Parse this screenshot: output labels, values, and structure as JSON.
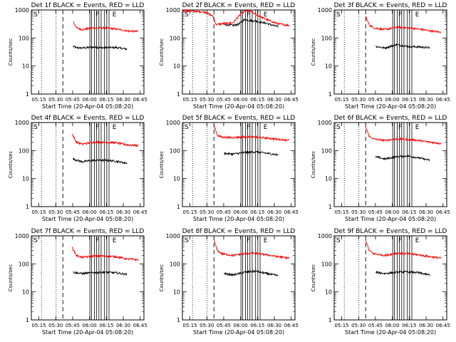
{
  "chart_data": [
    {
      "type": "line",
      "title": "Det 1f BLACK = Events, RED = LLD",
      "xlabel": "Start Time (20-Apr-04 05:08:20)",
      "ylabel": "Counts/sec",
      "yscale": "log",
      "ylim": [
        1,
        1000
      ],
      "x_start": "05:08",
      "xlim_minutes": [
        0,
        100
      ],
      "xtick_labels": [
        "05:15",
        "05:30",
        "05:45",
        "06:00",
        "06:15",
        "06:30",
        "06:45"
      ],
      "ytick_labels": [
        "1",
        "10",
        "100",
        "1000"
      ],
      "markers": [
        "S",
        "F",
        "E"
      ],
      "series": [
        {
          "name": "Events",
          "color": "#000000",
          "x_minutes": [
            37,
            40,
            45,
            55,
            65,
            75,
            85
          ],
          "values": [
            50,
            45,
            44,
            47,
            45,
            46,
            40
          ]
        },
        {
          "name": "LLD",
          "color": "#ff0000",
          "x_minutes": [
            37,
            40,
            45,
            55,
            65,
            75,
            85,
            95
          ],
          "values": [
            400,
            230,
            200,
            230,
            230,
            210,
            180,
            170
          ]
        }
      ]
    },
    {
      "type": "line",
      "title": "Det 2f BLACK = Events, RED = LLD",
      "xlabel": "Start Time (20-Apr-04 05:08:20)",
      "ylabel": "Counts/sec",
      "yscale": "log",
      "ylim": [
        1,
        1000
      ],
      "x_start": "05:08",
      "xlim_minutes": [
        0,
        100
      ],
      "xtick_labels": [
        "05:15",
        "05:30",
        "05:45",
        "06:00",
        "06:15",
        "06:30",
        "06:45"
      ],
      "ytick_labels": [
        "1",
        "10",
        "100",
        "1000"
      ],
      "markers": [
        "S",
        "F",
        "E"
      ],
      "series": [
        {
          "name": "Events",
          "color": "#000000",
          "x_minutes": [
            37,
            45,
            50,
            55,
            65,
            75,
            85
          ],
          "values": [
            300,
            280,
            310,
            450,
            400,
            330,
            250
          ]
        },
        {
          "name": "LLD",
          "color": "#ff0000",
          "x_minutes": [
            0,
            20,
            27,
            30,
            37,
            45,
            50,
            55,
            60,
            65,
            75,
            85,
            95
          ],
          "values": [
            950,
            850,
            600,
            300,
            330,
            350,
            600,
            900,
            900,
            700,
            450,
            320,
            280
          ]
        }
      ]
    },
    {
      "type": "line",
      "title": "Det 3f BLACK = Events, RED = LLD",
      "xlabel": "Start Time (20-Apr-04 05:08:20)",
      "ylabel": "Counts/sec",
      "yscale": "log",
      "ylim": [
        1,
        1000
      ],
      "x_start": "05:08",
      "xlim_minutes": [
        0,
        100
      ],
      "xtick_labels": [
        "05:15",
        "05:30",
        "05:45",
        "06:00",
        "06:15",
        "06:30",
        "06:45"
      ],
      "ytick_labels": [
        "1",
        "10",
        "100",
        "1000"
      ],
      "markers": [
        "S",
        "F",
        "E"
      ],
      "series": [
        {
          "name": "Events",
          "color": "#000000",
          "x_minutes": [
            37,
            45,
            55,
            65,
            75,
            85
          ],
          "values": [
            50,
            44,
            58,
            50,
            48,
            45
          ]
        },
        {
          "name": "LLD",
          "color": "#ff0000",
          "x_minutes": [
            28,
            31,
            35,
            45,
            55,
            65,
            75,
            85,
            95
          ],
          "values": [
            600,
            300,
            230,
            200,
            240,
            230,
            210,
            180,
            160
          ]
        }
      ]
    },
    {
      "type": "line",
      "title": "Det 4f BLACK = Events, RED = LLD",
      "xlabel": "Start Time (20-Apr-04 05:08:20)",
      "ylabel": "Counts/sec",
      "yscale": "log",
      "ylim": [
        1,
        1000
      ],
      "x_start": "05:08",
      "xlim_minutes": [
        0,
        100
      ],
      "xtick_labels": [
        "05:15",
        "05:30",
        "05:45",
        "06:00",
        "06:15",
        "06:30",
        "06:45"
      ],
      "ytick_labels": [
        "1",
        "10",
        "100",
        "1000"
      ],
      "markers": [
        "S",
        "F",
        "E"
      ],
      "series": [
        {
          "name": "Events",
          "color": "#000000",
          "x_minutes": [
            37,
            45,
            55,
            65,
            75,
            85
          ],
          "values": [
            50,
            40,
            45,
            45,
            42,
            35
          ]
        },
        {
          "name": "LLD",
          "color": "#ff0000",
          "x_minutes": [
            36,
            40,
            45,
            55,
            65,
            75,
            85,
            95
          ],
          "values": [
            400,
            200,
            170,
            200,
            200,
            190,
            160,
            150
          ]
        }
      ]
    },
    {
      "type": "line",
      "title": "Det 5f BLACK = Events, RED = LLD",
      "xlabel": "Start Time (20-Apr-04 05:08:20)",
      "ylabel": "Counts/sec",
      "yscale": "log",
      "ylim": [
        1,
        1000
      ],
      "x_start": "05:08",
      "xlim_minutes": [
        0,
        100
      ],
      "xtick_labels": [
        "05:15",
        "05:30",
        "05:45",
        "06:00",
        "06:15",
        "06:30",
        "06:45"
      ],
      "ytick_labels": [
        "1",
        "10",
        "100",
        "1000"
      ],
      "markers": [
        "S",
        "F",
        "E"
      ],
      "series": [
        {
          "name": "Events",
          "color": "#000000",
          "x_minutes": [
            37,
            45,
            55,
            65,
            75,
            85
          ],
          "values": [
            80,
            75,
            85,
            90,
            80,
            70
          ]
        },
        {
          "name": "LLD",
          "color": "#ff0000",
          "x_minutes": [
            28,
            31,
            35,
            45,
            55,
            65,
            75,
            85,
            95
          ],
          "values": [
            800,
            350,
            300,
            290,
            310,
            300,
            280,
            250,
            240
          ]
        }
      ]
    },
    {
      "type": "line",
      "title": "Det 6f BLACK = Events, RED = LLD",
      "xlabel": "Start Time (20-Apr-04 05:08:20)",
      "ylabel": "Counts/sec",
      "yscale": "log",
      "ylim": [
        1,
        1000
      ],
      "x_start": "05:08",
      "xlim_minutes": [
        0,
        100
      ],
      "xtick_labels": [
        "05:15",
        "05:30",
        "05:45",
        "06:00",
        "06:15",
        "06:30",
        "06:45"
      ],
      "ytick_labels": [
        "1",
        "10",
        "100",
        "1000"
      ],
      "markers": [
        "S",
        "F",
        "E"
      ],
      "series": [
        {
          "name": "Events",
          "color": "#000000",
          "x_minutes": [
            37,
            45,
            55,
            65,
            75,
            85
          ],
          "values": [
            60,
            50,
            60,
            65,
            55,
            45
          ]
        },
        {
          "name": "LLD",
          "color": "#ff0000",
          "x_minutes": [
            28,
            31,
            35,
            45,
            55,
            65,
            75,
            85,
            95
          ],
          "values": [
            700,
            330,
            260,
            230,
            260,
            250,
            230,
            200,
            180
          ]
        }
      ]
    },
    {
      "type": "line",
      "title": "Det 7f BLACK = Events, RED = LLD",
      "xlabel": "Start Time (20-Apr-04 05:08:20)",
      "ylabel": "Counts/sec",
      "yscale": "log",
      "ylim": [
        1,
        1000
      ],
      "x_start": "05:08",
      "xlim_minutes": [
        0,
        100
      ],
      "xtick_labels": [
        "05:15",
        "05:30",
        "05:45",
        "06:00",
        "06:15",
        "06:30",
        "06:45"
      ],
      "ytick_labels": [
        "1",
        "10",
        "100",
        "1000"
      ],
      "markers": [
        "S",
        "F",
        "E"
      ],
      "series": [
        {
          "name": "Events",
          "color": "#000000",
          "x_minutes": [
            37,
            45,
            55,
            65,
            75,
            85
          ],
          "values": [
            50,
            45,
            48,
            50,
            48,
            42
          ]
        },
        {
          "name": "LLD",
          "color": "#ff0000",
          "x_minutes": [
            36,
            40,
            45,
            55,
            65,
            75,
            85,
            95
          ],
          "values": [
            400,
            200,
            170,
            190,
            190,
            180,
            150,
            140
          ]
        }
      ]
    },
    {
      "type": "line",
      "title": "Det 8f BLACK = Events, RED = LLD",
      "xlabel": "Start Time (20-Apr-04 05:08:20)",
      "ylabel": "Counts/sec",
      "yscale": "log",
      "ylim": [
        1,
        1000
      ],
      "x_start": "05:08",
      "xlim_minutes": [
        0,
        100
      ],
      "xtick_labels": [
        "05:15",
        "05:30",
        "05:45",
        "06:00",
        "06:15",
        "06:30",
        "06:45"
      ],
      "ytick_labels": [
        "1",
        "10",
        "100",
        "1000"
      ],
      "markers": [
        "S",
        "F",
        "E"
      ],
      "series": [
        {
          "name": "Events",
          "color": "#000000",
          "x_minutes": [
            37,
            45,
            55,
            65,
            75,
            85
          ],
          "values": [
            45,
            40,
            50,
            55,
            45,
            38
          ]
        },
        {
          "name": "LLD",
          "color": "#ff0000",
          "x_minutes": [
            28,
            31,
            35,
            45,
            55,
            65,
            75,
            85,
            95
          ],
          "values": [
            700,
            300,
            230,
            200,
            230,
            240,
            210,
            180,
            160
          ]
        }
      ]
    },
    {
      "type": "line",
      "title": "Det 9f BLACK = Events, RED = LLD",
      "xlabel": "Start Time (20-Apr-04 05:08:20)",
      "ylabel": "Counts/sec",
      "yscale": "log",
      "ylim": [
        1,
        1000
      ],
      "x_start": "05:08",
      "xlim_minutes": [
        0,
        100
      ],
      "xtick_labels": [
        "05:15",
        "05:30",
        "05:45",
        "06:00",
        "06:15",
        "06:30",
        "06:45"
      ],
      "ytick_labels": [
        "1",
        "10",
        "100",
        "1000"
      ],
      "markers": [
        "S",
        "F",
        "E"
      ],
      "series": [
        {
          "name": "Events",
          "color": "#000000",
          "x_minutes": [
            37,
            45,
            55,
            65,
            75,
            85
          ],
          "values": [
            50,
            45,
            50,
            52,
            48,
            40
          ]
        },
        {
          "name": "LLD",
          "color": "#ff0000",
          "x_minutes": [
            28,
            31,
            35,
            45,
            55,
            65,
            75,
            85,
            95
          ],
          "values": [
            700,
            300,
            230,
            200,
            240,
            230,
            210,
            180,
            160
          ]
        }
      ]
    }
  ]
}
